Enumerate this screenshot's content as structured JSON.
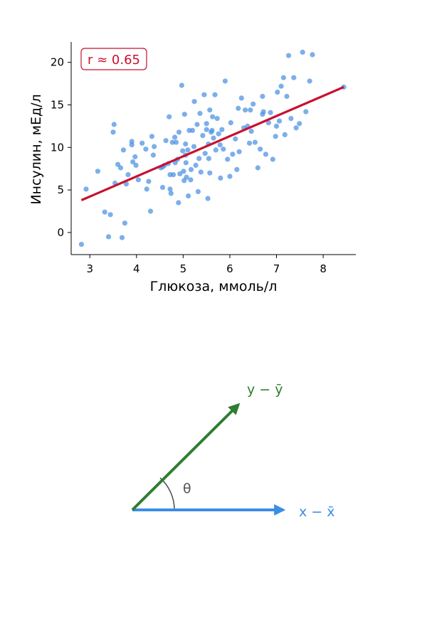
{
  "chart_data": [
    {
      "type": "scatter",
      "xlabel": "Глюкоза, ммоль/л",
      "ylabel": "Инсулин, мЕд/л",
      "xlim": [
        2.6,
        8.7
      ],
      "ylim": [
        -2.6,
        22.4
      ],
      "xticks": [
        "3",
        "4",
        "5",
        "6",
        "7",
        "8"
      ],
      "yticks": [
        "0",
        "5",
        "10",
        "15",
        "20"
      ],
      "grid": false,
      "annotation": {
        "text": "r ≈ 0.65",
        "color": "#c8102e",
        "position": "top-left"
      },
      "point_color": "#4a90e2",
      "series": [
        {
          "x": [
            2.82,
            2.92,
            3.17,
            3.32,
            3.4,
            3.44,
            3.5,
            3.54,
            3.6,
            3.66,
            3.69,
            3.72,
            3.75,
            3.78,
            3.82,
            3.9,
            3.92,
            3.97,
            3.99,
            4.04,
            4.12,
            4.2,
            4.22,
            4.26,
            4.3,
            4.33,
            4.36,
            4.38,
            4.52,
            4.56,
            4.6,
            4.63,
            4.68,
            4.7,
            4.72,
            4.72,
            4.74,
            4.77,
            4.79,
            4.82,
            4.83,
            4.85,
            4.9,
            4.91,
            4.93,
            4.97,
            4.99,
            5.01,
            5.02,
            5.03,
            5.05,
            5.06,
            5.07,
            5.1,
            5.11,
            5.13,
            5.17,
            5.2,
            5.23,
            5.24,
            5.27,
            5.3,
            5.32,
            5.34,
            5.36,
            5.38,
            5.42,
            5.45,
            5.47,
            5.5,
            5.53,
            5.54,
            5.55,
            5.57,
            5.6,
            5.62,
            5.63,
            5.65,
            5.68,
            5.7,
            5.73,
            5.76,
            5.79,
            5.8,
            5.83,
            5.86,
            5.9,
            5.95,
            6.0,
            6.02,
            6.06,
            6.12,
            6.15,
            6.18,
            6.2,
            6.25,
            6.3,
            6.33,
            6.38,
            6.42,
            6.46,
            6.5,
            6.54,
            6.6,
            6.65,
            6.7,
            6.72,
            6.77,
            6.83,
            6.87,
            6.92,
            6.98,
            7.02,
            7.06,
            7.1,
            7.15,
            7.18,
            7.22,
            7.26,
            7.31,
            7.37,
            7.42,
            7.49,
            7.56,
            7.63,
            7.71,
            7.77,
            8.44,
            5.05,
            5.57,
            6.44,
            6.7,
            7.0,
            5.16,
            4.88,
            3.52,
            3.9,
            4.56,
            5.5
          ],
          "y": [
            -1.4,
            5.1,
            7.2,
            2.4,
            -0.5,
            2.1,
            11.8,
            5.8,
            8.0,
            7.6,
            -0.6,
            9.7,
            1.1,
            5.7,
            6.8,
            10.7,
            8.3,
            8.9,
            7.9,
            6.2,
            10.5,
            9.8,
            5.1,
            6.0,
            2.5,
            11.3,
            9.1,
            10.1,
            7.6,
            5.3,
            7.9,
            10.8,
            8.1,
            13.6,
            6.8,
            5.1,
            4.6,
            10.6,
            6.8,
            11.2,
            8.2,
            10.6,
            3.5,
            11.8,
            6.9,
            17.3,
            9.6,
            7.2,
            6.1,
            13.9,
            10.4,
            8.2,
            6.5,
            9.7,
            4.3,
            12.0,
            7.4,
            12.0,
            10.1,
            15.4,
            7.9,
            12.7,
            4.8,
            8.7,
            14.0,
            7.1,
            11.4,
            16.2,
            9.3,
            12.8,
            4.0,
            10.4,
            8.7,
            14.4,
            11.8,
            12.0,
            13.6,
            11.1,
            16.2,
            9.7,
            13.4,
            11.6,
            10.3,
            6.4,
            12.1,
            9.8,
            17.8,
            8.6,
            6.6,
            12.9,
            9.2,
            11.0,
            7.4,
            14.6,
            9.5,
            15.8,
            12.3,
            14.4,
            12.5,
            10.5,
            11.9,
            15.1,
            10.6,
            7.6,
            9.8,
            16.0,
            14.2,
            9.2,
            12.9,
            14.1,
            8.6,
            11.3,
            16.5,
            13.1,
            17.2,
            18.2,
            11.5,
            16.0,
            20.8,
            13.4,
            18.2,
            12.3,
            12.8,
            21.2,
            14.2,
            17.8,
            20.9,
            17.1,
            9.1,
            7.0,
            14.4,
            13.9,
            12.5,
            6.2,
            8.6,
            12.7,
            10.3,
            7.7,
            12.1
          ]
        }
      ],
      "regression_line": {
        "x": [
          2.82,
          8.44
        ],
        "y": [
          3.8,
          17.1
        ],
        "color": "#c8102e"
      }
    },
    {
      "type": "diagram",
      "vectors": [
        {
          "label": "x − x̄",
          "color": "#3a8ee6",
          "direction_deg": 0
        },
        {
          "label": "y − ȳ",
          "color": "#2e7d32",
          "direction_deg": 49
        }
      ],
      "angle_label": "θ",
      "angle_color": "#555555"
    }
  ]
}
